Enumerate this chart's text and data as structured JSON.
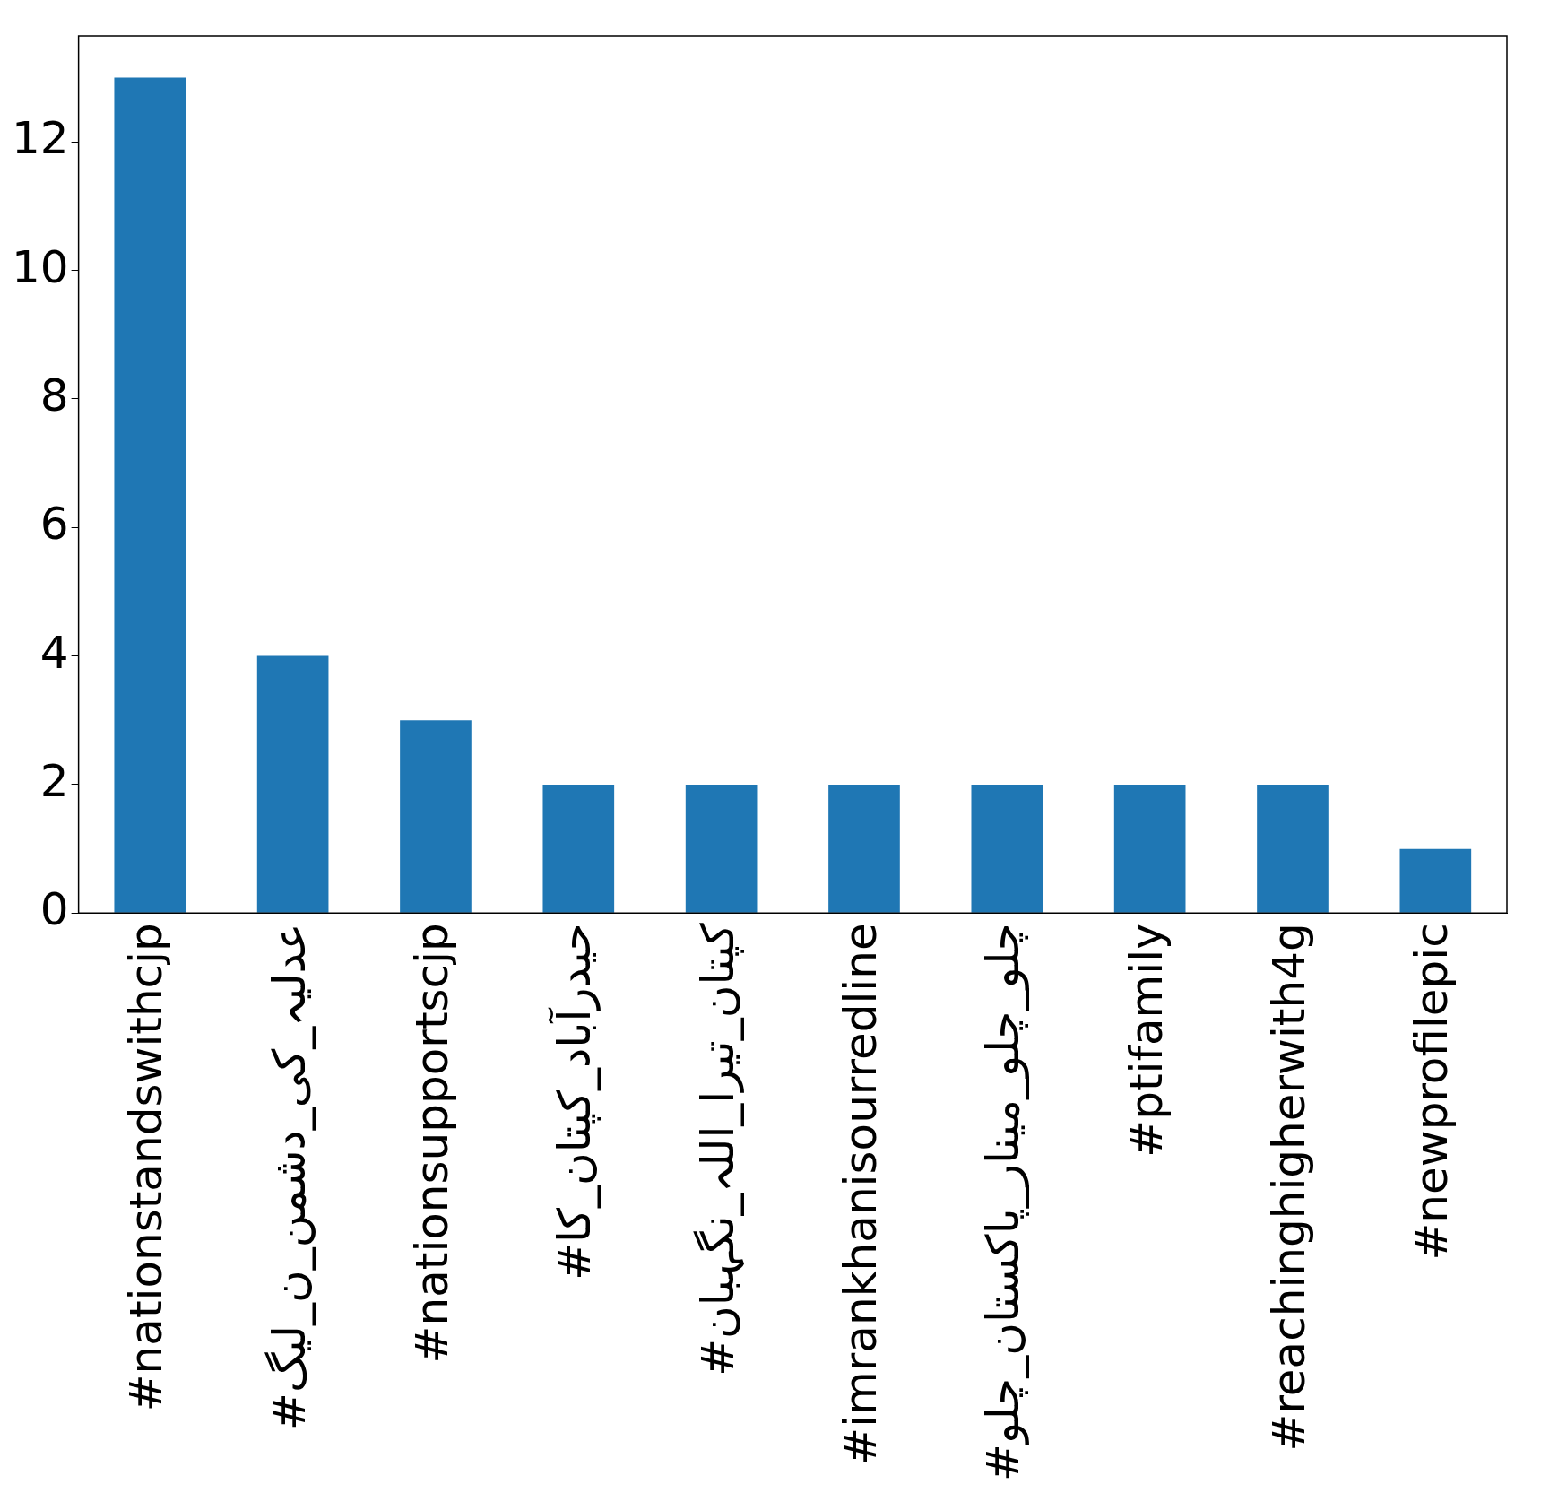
{
  "chart_data": {
    "type": "bar",
    "categories": [
      "#nationstandswithcjp",
      "#عدلیہ_کی_دشمن_ن_لیگ",
      "#nationsupportscjp",
      "#حیدرآباد_کپتان_کا",
      "#کپتان_تیرا_اللہ_نگہبان",
      "#imrankhanisourredline",
      "#چلو_چلو_مینار_پاکستان_چلو",
      "#ptifamily",
      "#reachinghigherwith4g",
      "#newprofilepic"
    ],
    "values": [
      13,
      4,
      3,
      2,
      2,
      2,
      2,
      2,
      2,
      1
    ],
    "color": "#1f77b4",
    "ylim": [
      0,
      13.65
    ],
    "yticks": [
      0,
      2,
      4,
      6,
      8,
      10,
      12
    ]
  }
}
